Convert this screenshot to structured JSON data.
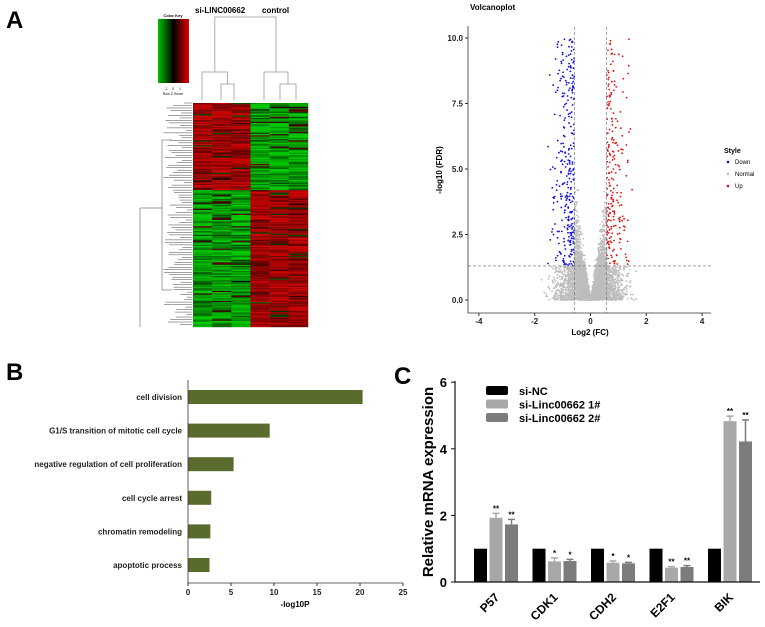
{
  "panel_labels": {
    "a": "A",
    "b": "B",
    "c": "C"
  },
  "chart_data": [
    {
      "type": "heatmap",
      "panel": "A",
      "column_groups": [
        "si-LINC00662",
        "control"
      ],
      "columns_per_group": 3,
      "color_key": {
        "title": "Color Key",
        "ticks": [
          "-1",
          "0",
          "1"
        ],
        "label": "Row Z-Score",
        "low_color": "#00c000",
        "mid_color": "#000000",
        "high_color": "#e00000"
      },
      "row_dendrogram": true,
      "column_dendrogram": true
    },
    {
      "type": "scatter",
      "panel": "A",
      "title": "Volcanoplot",
      "xlabel": "Log2 (FC)",
      "ylabel": "-log10 (FDR)",
      "xlim": [
        -4.4,
        4.4
      ],
      "ylim": [
        -0.5,
        10.4
      ],
      "xticks": [
        -4,
        -2,
        0,
        2,
        4
      ],
      "yticks": [
        "0.0",
        "2.5",
        "5.0",
        "7.5",
        "10.0"
      ],
      "thresholds": {
        "log2fc": [
          -0.58,
          0.58
        ],
        "neg_log10_fdr": 1.3
      },
      "legend": {
        "title": "Style",
        "placement": "right",
        "entries": [
          {
            "name": "Down",
            "color": "#1010e0"
          },
          {
            "name": "Normal",
            "color": "#bdbdbd"
          },
          {
            "name": "Up",
            "color": "#e01010"
          }
        ]
      },
      "grid": false
    },
    {
      "type": "bar",
      "panel": "B",
      "orientation": "horizontal",
      "categories": [
        "cell division",
        "G1/S transition of mitotic cell cycle",
        "negative regulation of cell proliferation",
        "cell cycle arrest",
        "chromatin remodeling",
        "apoptotic process"
      ],
      "values": [
        20.3,
        9.5,
        5.3,
        2.7,
        2.6,
        2.5
      ],
      "xlabel": "-log10P",
      "xlim": [
        0,
        25
      ],
      "xticks": [
        0,
        5,
        10,
        15,
        20,
        25
      ],
      "bar_color": "#5a6b2e",
      "grid": false
    },
    {
      "type": "bar",
      "panel": "C",
      "categories": [
        "P57",
        "CDK1",
        "CDH2",
        "E2F1",
        "BIK"
      ],
      "ylabel": "Relative mRNA expression",
      "ylim": [
        0,
        6
      ],
      "yticks": [
        0,
        2,
        4,
        6
      ],
      "legend_placement": "top-left",
      "series": [
        {
          "name": "si-NC",
          "color": "#000000",
          "values": [
            1,
            1,
            1,
            1,
            1
          ],
          "errors": [
            0,
            0,
            0,
            0,
            0
          ],
          "significance": [
            "",
            "",
            "",
            "",
            ""
          ]
        },
        {
          "name": "si-Linc00662 1#",
          "color": "#a8a8a8",
          "values": [
            1.93,
            0.62,
            0.58,
            0.43,
            4.83
          ],
          "errors": [
            0.13,
            0.1,
            0.05,
            0.03,
            0.15
          ],
          "significance": [
            "**",
            "*",
            "*",
            "**",
            "**"
          ]
        },
        {
          "name": "si-Linc00662 2#",
          "color": "#7c7c7c",
          "values": [
            1.73,
            0.63,
            0.56,
            0.45,
            4.22
          ],
          "errors": [
            0.15,
            0.05,
            0.03,
            0.04,
            0.65
          ],
          "significance": [
            "**",
            "*",
            "*",
            "**",
            "**"
          ]
        }
      ],
      "grid": false
    }
  ]
}
